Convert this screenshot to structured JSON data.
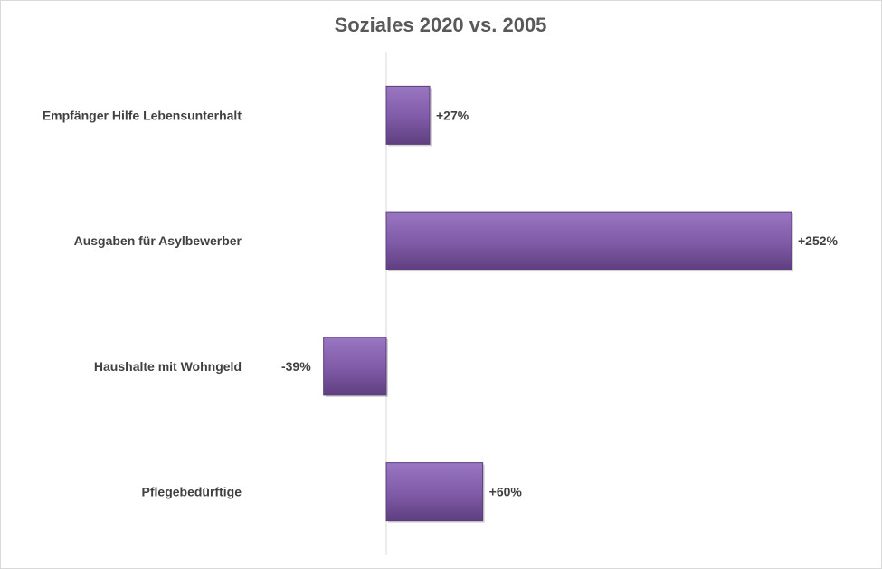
{
  "chart_data": {
    "type": "bar",
    "orientation": "horizontal",
    "title": "Soziales 2020 vs. 2005",
    "categories": [
      "Empfänger Hilfe Lebensunterhalt",
      "Ausgaben für Asylbewerber",
      "Haushalte mit Wohngeld",
      "Pflegebedürftige"
    ],
    "values": [
      27,
      252,
      -39,
      60
    ],
    "data_labels": [
      "+27%",
      "+252%",
      "-39%",
      "+60%"
    ],
    "xlabel": "",
    "ylabel": "",
    "grid": false,
    "legend": "none",
    "bar_color": "#7f5aa6",
    "bar_color_light": "#9a77c2",
    "bar_color_dark": "#5e3f80"
  }
}
